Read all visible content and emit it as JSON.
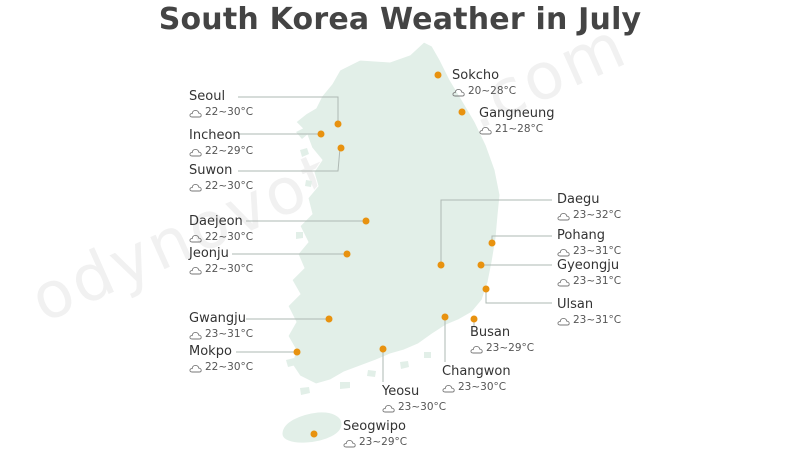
{
  "title": "South Korea Weather in July",
  "watermark": "odynovotours.com",
  "colors": {
    "land": "#e2efe8",
    "land_edge": "#ffffff",
    "marker": "#e8920f",
    "leader": "#aeb8b3",
    "title": "#444444"
  },
  "icon": "cloud-icon",
  "cities": [
    {
      "name": "Seoul",
      "temp": "22~30°C"
    },
    {
      "name": "Incheon",
      "temp": "22~29°C"
    },
    {
      "name": "Suwon",
      "temp": "22~30°C"
    },
    {
      "name": "Daejeon",
      "temp": "22~30°C"
    },
    {
      "name": "Jeonju",
      "temp": "22~30°C"
    },
    {
      "name": "Gwangju",
      "temp": "23~31°C"
    },
    {
      "name": "Mokpo",
      "temp": "22~30°C"
    },
    {
      "name": "Sokcho",
      "temp": "20~28°C"
    },
    {
      "name": "Gangneung",
      "temp": "21~28°C"
    },
    {
      "name": "Daegu",
      "temp": "23~32°C"
    },
    {
      "name": "Pohang",
      "temp": "23~31°C"
    },
    {
      "name": "Gyeongju",
      "temp": "23~31°C"
    },
    {
      "name": "Ulsan",
      "temp": "23~31°C"
    },
    {
      "name": "Busan",
      "temp": "23~29°C"
    },
    {
      "name": "Changwon",
      "temp": "23~30°C"
    },
    {
      "name": "Yeosu",
      "temp": "23~30°C"
    },
    {
      "name": "Seogwipo",
      "temp": "23~29°C"
    }
  ]
}
